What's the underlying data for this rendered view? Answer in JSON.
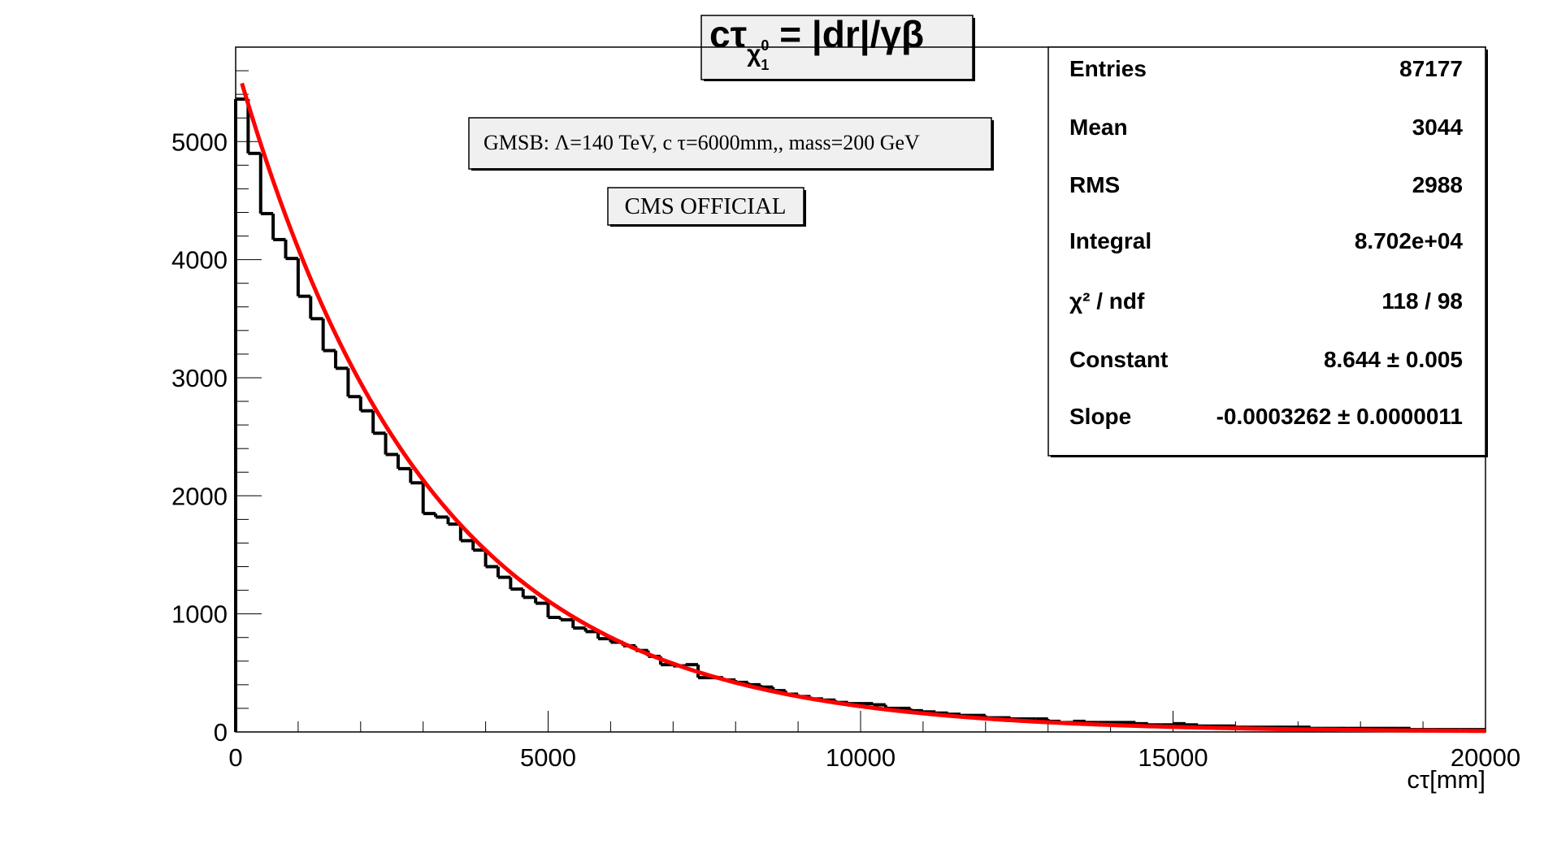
{
  "chart_data": {
    "type": "histogram",
    "title": "cτ_χ1^0 = |dr|/γβ",
    "title_parts": {
      "lhs": "cτ",
      "sub_symbol": "χ",
      "sub_sub": "1",
      "sub_sup": "0",
      "rhs": " = |dr|/γβ"
    },
    "xlabel": "cτ[mm]",
    "ylabel": "",
    "xlim": [
      0,
      20000
    ],
    "ylim": [
      0,
      5800
    ],
    "x_ticks": [
      0,
      5000,
      10000,
      15000,
      20000
    ],
    "y_ticks": [
      0,
      1000,
      2000,
      3000,
      4000,
      5000
    ],
    "grid": false,
    "bin_width": 200,
    "histogram_values": [
      5360,
      4900,
      4390,
      4170,
      4010,
      3690,
      3500,
      3230,
      3080,
      2840,
      2720,
      2530,
      2350,
      2230,
      2110,
      1850,
      1820,
      1760,
      1620,
      1540,
      1400,
      1310,
      1210,
      1140,
      1090,
      970,
      950,
      880,
      850,
      790,
      760,
      730,
      690,
      640,
      570,
      560,
      570,
      460,
      460,
      440,
      420,
      400,
      380,
      350,
      320,
      300,
      280,
      270,
      250,
      240,
      240,
      230,
      200,
      200,
      180,
      170,
      160,
      150,
      140,
      140,
      120,
      120,
      110,
      110,
      110,
      90,
      80,
      90,
      80,
      80,
      80,
      80,
      70,
      60,
      60,
      70,
      60,
      50,
      50,
      50,
      40,
      40,
      40,
      40,
      40,
      40,
      30,
      30,
      30,
      30,
      30,
      30,
      30,
      30,
      20,
      20,
      20,
      20,
      20,
      20
    ],
    "fit": {
      "function": "expo",
      "constant": 8.644,
      "slope": -0.0003262,
      "x_start": 100,
      "x_end": 20000,
      "color": "#ff0000"
    },
    "histogram_color": "#000000",
    "stats_box": {
      "rows": [
        {
          "label": "Entries",
          "value": "87177"
        },
        {
          "label": "Mean",
          "value": "3044"
        },
        {
          "label": "RMS",
          "value": "2988"
        },
        {
          "label": "Integral",
          "value": "8.702e+04"
        },
        {
          "label": "χ² / ndf",
          "value": "118 / 98"
        },
        {
          "label": "Constant",
          "value": "8.644 ± 0.005"
        },
        {
          "label": "Slope",
          "value": "-0.0003262 ± 0.0000011"
        }
      ],
      "placement": "top-right"
    },
    "annotations": [
      {
        "id": "model",
        "text": "GMSB:  Λ=140 TeV, c τ=6000mm,, mass=200 GeV"
      },
      {
        "id": "cms",
        "text": "CMS OFFICIAL"
      }
    ]
  }
}
